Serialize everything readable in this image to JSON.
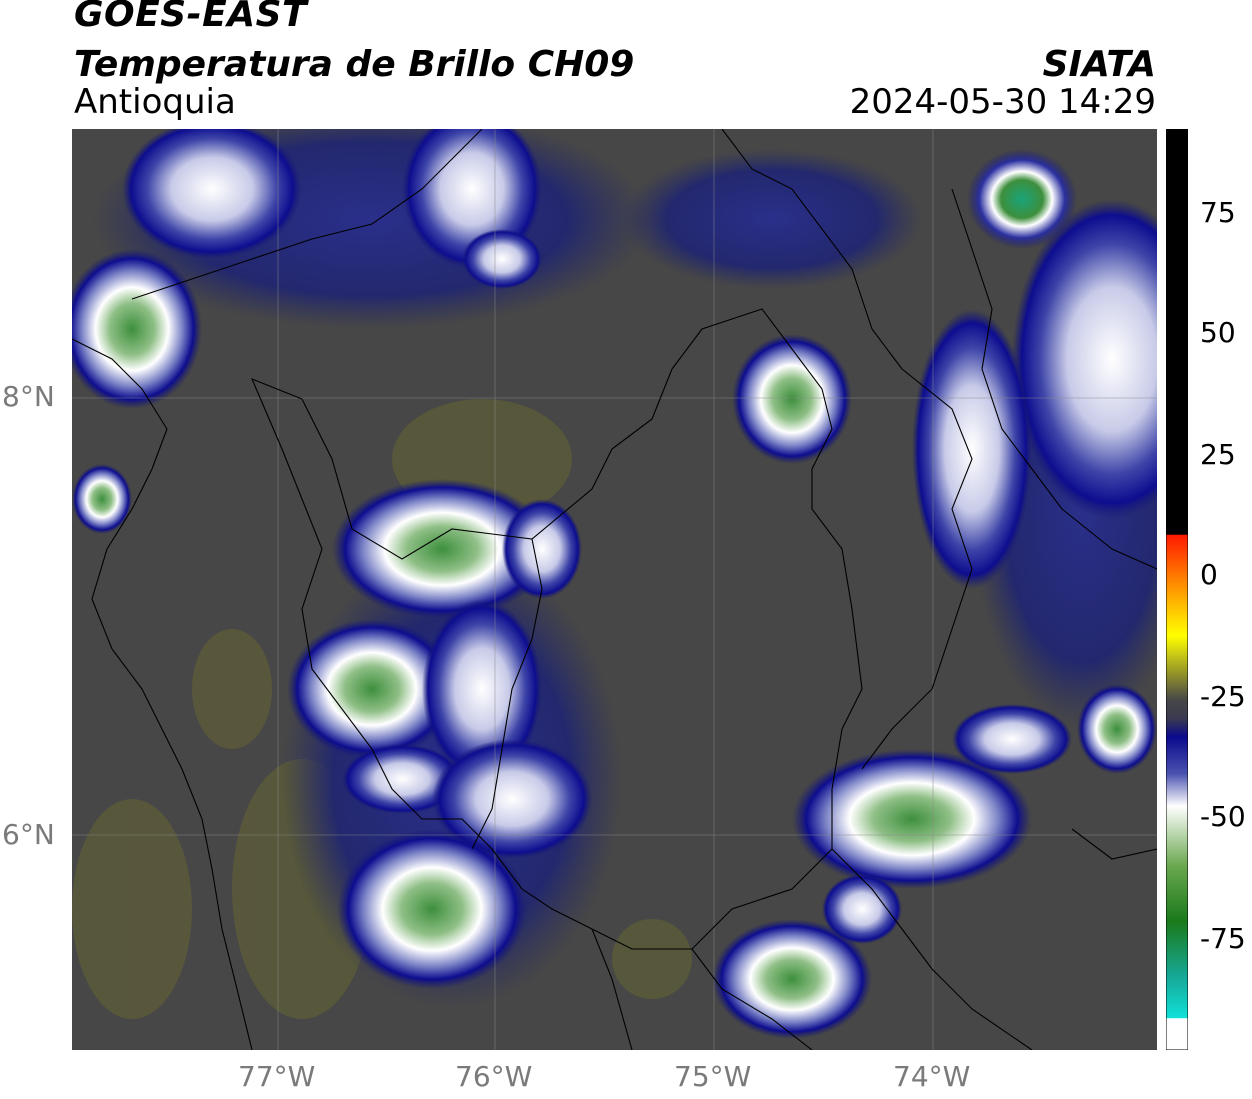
{
  "header": {
    "satellite": "GOES-EAST",
    "product": "Temperatura de Brillo CH09",
    "region": "Antioquia",
    "organization": "SIATA",
    "datetime": "2024-05-30 14:29"
  },
  "map": {
    "background_color": "#474747",
    "lon_ticks": [
      "77°W",
      "76°W",
      "75°W",
      "74°W"
    ],
    "lat_ticks": [
      "8°N",
      "6°N"
    ]
  },
  "colorbar": {
    "ticks": [
      "75",
      "50",
      "25",
      "0",
      "-25",
      "-50",
      "-75"
    ],
    "colors": {
      "warm": "#000000",
      "red": "#ff1a00",
      "orange": "#ff9900",
      "yellow": "#ffff00",
      "neutral": "#474747",
      "navy": "#0a0a8c",
      "white": "#ffffff",
      "green": "#2e8b2e",
      "cyan": "#11e0d8"
    }
  }
}
